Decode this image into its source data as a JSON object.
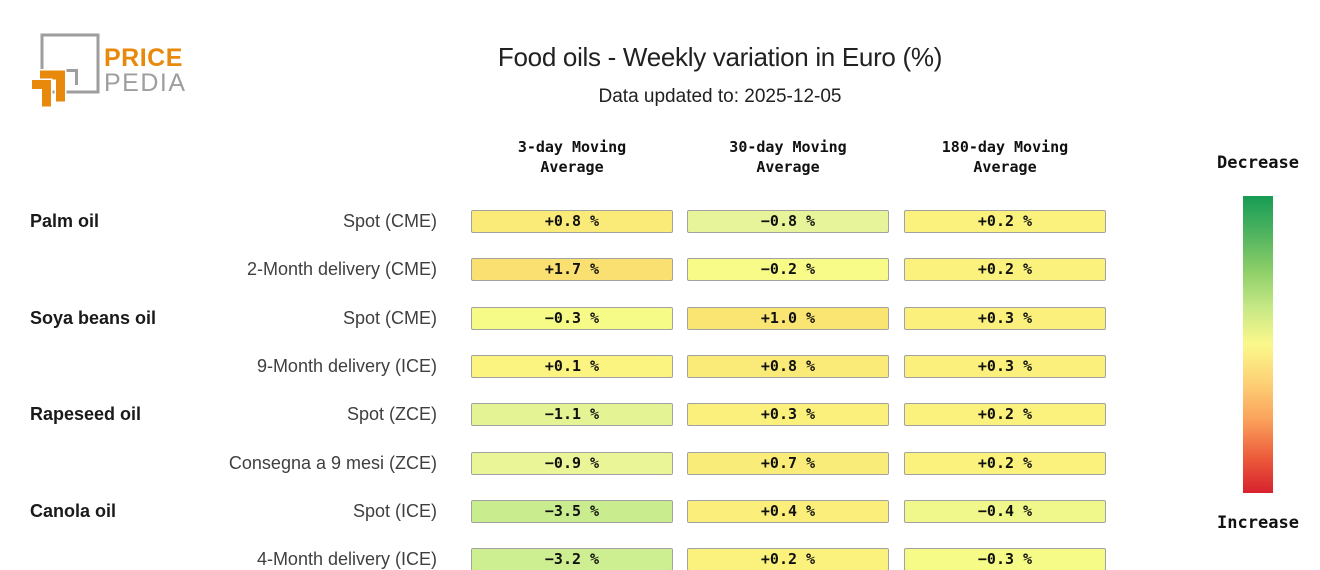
{
  "logo": {
    "brand_top": "PRICE",
    "brand_bottom": "PEDIA",
    "orange": "#E8890B",
    "gray": "#9E9E9E"
  },
  "header": {
    "title": "Food oils - Weekly variation in Euro (%)",
    "subtitle": "Data updated to: 2025-12-05"
  },
  "legend": {
    "top_label": "Decrease",
    "bottom_label": "Increase",
    "gradient_colors": [
      "#169C55",
      "#4FB35F",
      "#8CCE68",
      "#C6E885",
      "#FBF88B",
      "#FDD276",
      "#FBA35C",
      "#ED5F3C",
      "#D7212D"
    ]
  },
  "chart_data": {
    "type": "heatmap",
    "title": "Food oils - Weekly variation in Euro (%)",
    "subtitle": "Data updated to: 2025-12-05",
    "unit": "percent weekly variation in Euro",
    "legend": {
      "top": "Decrease",
      "bottom": "Increase"
    },
    "columns": [
      "3-day Moving Average",
      "30-day Moving Average",
      "180-day Moving Average"
    ],
    "groups": [
      {
        "label": "Palm oil",
        "row_index": 0
      },
      {
        "label": "Soya beans oil",
        "row_index": 2
      },
      {
        "label": "Rapeseed oil",
        "row_index": 4
      },
      {
        "label": "Canola oil",
        "row_index": 6
      }
    ],
    "rows": [
      {
        "group": "Palm oil",
        "label": "Spot (CME)",
        "cells": [
          {
            "value": 0.8,
            "display": "+0.8 %",
            "color": "#FAEA78"
          },
          {
            "value": -0.8,
            "display": "−0.8 %",
            "color": "#E7F499"
          },
          {
            "value": 0.2,
            "display": "+0.2 %",
            "color": "#FBF27D"
          }
        ]
      },
      {
        "group": "Palm oil",
        "label": "2-Month delivery (CME)",
        "cells": [
          {
            "value": 1.7,
            "display": "+1.7 %",
            "color": "#F9E070"
          },
          {
            "value": -0.2,
            "display": "−0.2 %",
            "color": "#F9FB88"
          },
          {
            "value": 0.2,
            "display": "+0.2 %",
            "color": "#FBF27D"
          }
        ]
      },
      {
        "group": "Soya beans oil",
        "label": "Spot (CME)",
        "cells": [
          {
            "value": -0.3,
            "display": "−0.3 %",
            "color": "#F6FA86"
          },
          {
            "value": 1.0,
            "display": "+1.0 %",
            "color": "#FAE573"
          },
          {
            "value": 0.3,
            "display": "+0.3 %",
            "color": "#FBF07C"
          }
        ]
      },
      {
        "group": "Soya beans oil",
        "label": "9-Month delivery (ICE)",
        "cells": [
          {
            "value": 0.1,
            "display": "+0.1 %",
            "color": "#FCF480"
          },
          {
            "value": 0.8,
            "display": "+0.8 %",
            "color": "#FAEA78"
          },
          {
            "value": 0.3,
            "display": "+0.3 %",
            "color": "#FBF07C"
          }
        ]
      },
      {
        "group": "Rapeseed oil",
        "label": "Spot (ZCE)",
        "cells": [
          {
            "value": -1.1,
            "display": "−1.1 %",
            "color": "#E4F394"
          },
          {
            "value": 0.3,
            "display": "+0.3 %",
            "color": "#FBF07C"
          },
          {
            "value": 0.2,
            "display": "+0.2 %",
            "color": "#FBF27D"
          }
        ]
      },
      {
        "group": "Rapeseed oil",
        "label": "Consegna a 9 mesi (ZCE)",
        "cells": [
          {
            "value": -0.9,
            "display": "−0.9 %",
            "color": "#E9F597"
          },
          {
            "value": 0.7,
            "display": "+0.7 %",
            "color": "#FAEC79"
          },
          {
            "value": 0.2,
            "display": "+0.2 %",
            "color": "#FBF27D"
          }
        ]
      },
      {
        "group": "Canola oil",
        "label": "Spot (ICE)",
        "cells": [
          {
            "value": -3.5,
            "display": "−3.5 %",
            "color": "#C9ED8E"
          },
          {
            "value": 0.4,
            "display": "+0.4 %",
            "color": "#FBEE7B"
          },
          {
            "value": -0.4,
            "display": "−0.4 %",
            "color": "#F0F88C"
          }
        ]
      },
      {
        "group": "Canola oil",
        "label": "4-Month delivery (ICE)",
        "cells": [
          {
            "value": -3.2,
            "display": "−3.2 %",
            "color": "#CDEE91"
          },
          {
            "value": 0.2,
            "display": "+0.2 %",
            "color": "#FBF27D"
          },
          {
            "value": -0.3,
            "display": "−0.3 %",
            "color": "#F6FA86"
          }
        ]
      }
    ]
  }
}
